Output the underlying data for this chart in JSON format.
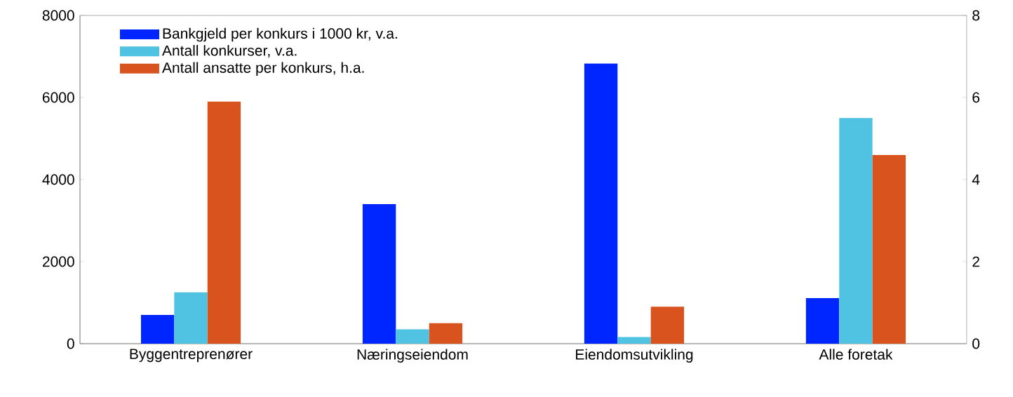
{
  "chart_data": {
    "type": "bar",
    "categories": [
      "Byggentreprenører",
      "Næringseiendom",
      "Eiendomsutvikling",
      "Alle foretak"
    ],
    "series": [
      {
        "name": "Bankgjeld per konkurs i 1000 kr, v.a.",
        "color": "#0026ff",
        "values": [
          700,
          3400,
          6830,
          1110
        ]
      },
      {
        "name": "Antall konkurser, v.a.",
        "color": "#4fc3e1",
        "values": [
          1250,
          350,
          160,
          5500
        ]
      },
      {
        "name": "Antall ansatte per konkurs, h.a.",
        "color": "#d9531e",
        "values": [
          5.9,
          0.5,
          0.9,
          4.6
        ],
        "axis": "y2"
      }
    ],
    "ylim": [
      0,
      8000
    ],
    "yticks": [
      0,
      2000,
      4000,
      6000,
      8000
    ],
    "y2lim": [
      0,
      8
    ],
    "y2ticks": [
      0,
      2,
      4,
      6,
      8
    ],
    "legend": "top left",
    "grid": false
  }
}
